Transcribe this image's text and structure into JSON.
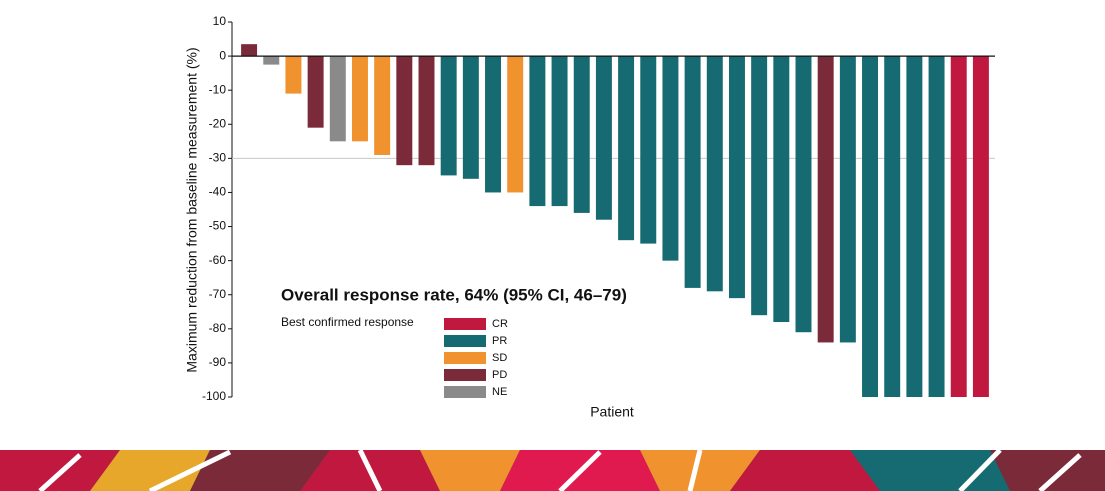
{
  "chart_data": {
    "type": "waterfall",
    "y_label": "Maximum reduction from baseline measurement (%)",
    "x_label": "Patient",
    "annotation": "Overall response rate, 64% (95% CI, 46–79)",
    "legend_title": "Best confirmed response",
    "categories": [
      null,
      null,
      null,
      null,
      null,
      null,
      null,
      null,
      null,
      null,
      null,
      null,
      null,
      null,
      null,
      null,
      null,
      null,
      null,
      null,
      null,
      null,
      null,
      null,
      null,
      null,
      null,
      null,
      null,
      null,
      null,
      null,
      null,
      null
    ],
    "series": [
      {
        "name": "CR",
        "color": "#c0183e",
        "values": [
          null,
          null,
          null,
          null,
          null,
          null,
          null,
          null,
          null,
          null,
          null,
          null,
          null,
          null,
          null,
          null,
          null,
          null,
          null,
          null,
          null,
          null,
          null,
          null,
          null,
          null,
          null,
          null,
          null,
          null,
          null,
          null,
          -100,
          -100
        ]
      },
      {
        "name": "PR",
        "color": "#166b72",
        "values": [
          null,
          null,
          null,
          null,
          null,
          null,
          null,
          null,
          null,
          -35,
          -36,
          -40,
          null,
          -44,
          -44,
          -46,
          -48,
          -54,
          -55,
          -60,
          -68,
          -69,
          -71,
          -76,
          -78,
          -81,
          null,
          -84,
          -100,
          -100,
          -100,
          -100,
          null,
          null
        ]
      },
      {
        "name": "SD",
        "color": "#f0922e",
        "values": [
          null,
          null,
          -11,
          null,
          null,
          -25,
          -29,
          null,
          null,
          null,
          null,
          null,
          -40,
          null,
          null,
          null,
          null,
          null,
          null,
          null,
          null,
          null,
          null,
          null,
          null,
          null,
          null,
          null,
          null,
          null,
          null,
          null,
          null,
          null
        ]
      },
      {
        "name": "PD",
        "color": "#7b2a3a",
        "values": [
          3.5,
          null,
          null,
          -21,
          null,
          null,
          null,
          -32,
          -32,
          null,
          null,
          null,
          null,
          null,
          null,
          null,
          null,
          null,
          null,
          null,
          null,
          null,
          null,
          null,
          null,
          null,
          -84,
          null,
          null,
          null,
          null,
          null,
          null,
          null
        ]
      },
      {
        "name": "NE",
        "color": "#8a8a8a",
        "values": [
          null,
          -2.5,
          null,
          null,
          -25,
          null,
          null,
          null,
          null,
          null,
          null,
          null,
          null,
          null,
          null,
          null,
          null,
          null,
          null,
          null,
          null,
          null,
          null,
          null,
          null,
          null,
          null,
          null,
          null,
          null,
          null,
          null,
          null,
          null
        ]
      }
    ],
    "ylim": [
      -100,
      10
    ],
    "yticks": [
      -100,
      -90,
      -80,
      -70,
      -60,
      -50,
      -40,
      -30,
      -20,
      -10,
      0,
      10
    ],
    "reference_line": -30
  }
}
